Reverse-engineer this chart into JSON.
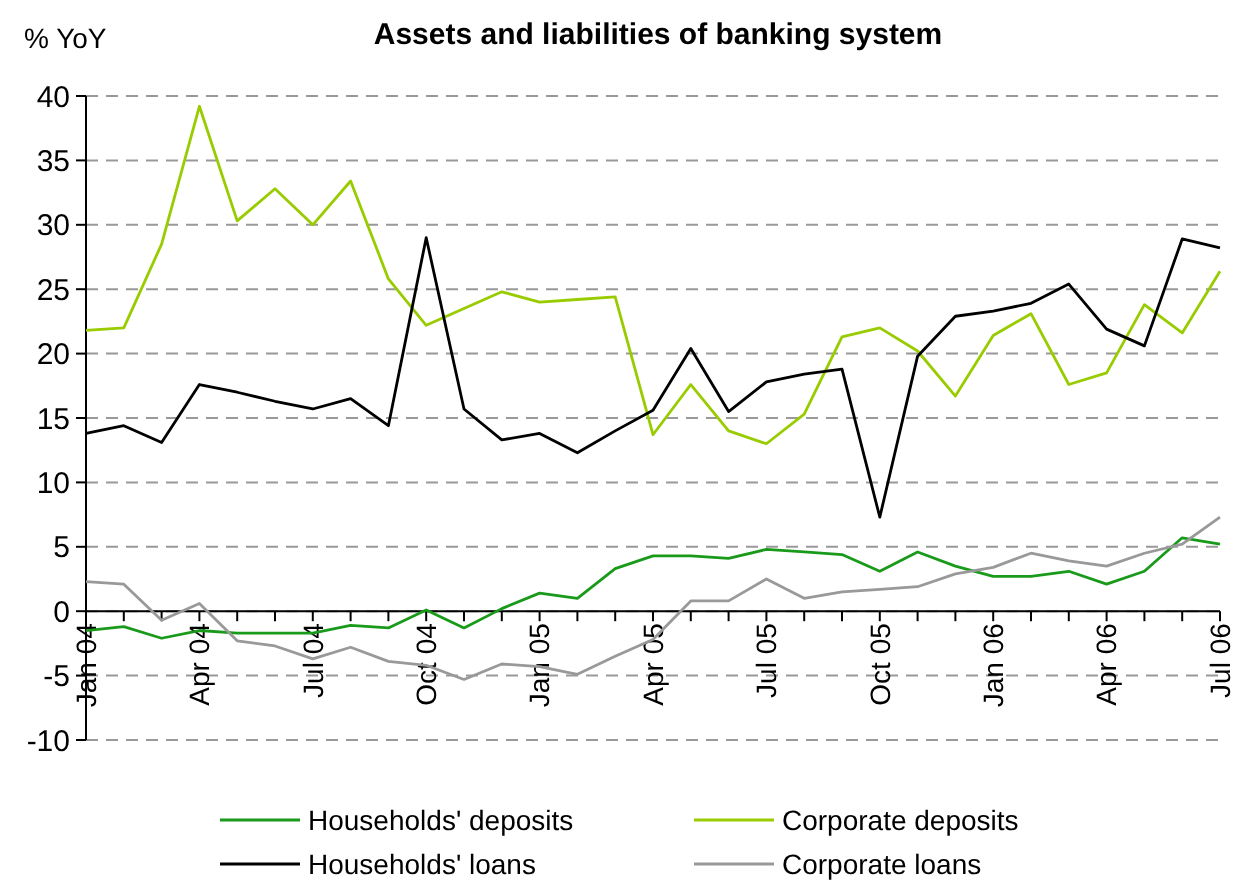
{
  "chart_data": {
    "type": "line",
    "title": "Assets and liabilities of banking system",
    "ylabel": "% YoY",
    "categories": [
      "Jan 04",
      null,
      null,
      "Apr 04",
      null,
      null,
      "Jul 04",
      null,
      null,
      "Oct 04",
      null,
      null,
      "Jan 05",
      null,
      null,
      "Apr 05",
      null,
      null,
      "Jul 05",
      null,
      null,
      "Oct 05",
      null,
      null,
      "Jan 06",
      null,
      null,
      "Apr 06",
      null,
      null,
      "Jul 06"
    ],
    "series": [
      {
        "name": "Households' deposits",
        "color": "#1a9a1a",
        "values": [
          -1.5,
          -1.2,
          -2.1,
          -1.5,
          -1.7,
          -1.7,
          -1.7,
          -1.1,
          -1.3,
          0.1,
          -1.3,
          0.2,
          1.4,
          1,
          3.3,
          4.3,
          4.3,
          4.1,
          4.8,
          4.6,
          4.4,
          3.1,
          4.6,
          3.5,
          2.7,
          2.7,
          3.1,
          2.1,
          3.1,
          5.7,
          5.2
        ]
      },
      {
        "name": "Corporate deposits",
        "color": "#99cc00",
        "values": [
          21.8,
          22,
          28.5,
          39.2,
          30.3,
          32.8,
          30,
          33.4,
          25.8,
          22.2,
          23.5,
          24.8,
          24,
          24.2,
          24.4,
          13.7,
          17.6,
          14,
          13,
          15.3,
          21.3,
          22,
          20.2,
          16.7,
          21.4,
          23.1,
          17.6,
          18.5,
          23.8,
          21.6,
          26.4
        ]
      },
      {
        "name": "Households' loans",
        "color": "#000000",
        "values": [
          13.8,
          14.4,
          13.1,
          17.6,
          17,
          16.3,
          15.7,
          16.5,
          14.4,
          29,
          15.7,
          13.3,
          13.8,
          12.3,
          14,
          15.6,
          20.4,
          15.5,
          17.8,
          18.4,
          18.8,
          7.3,
          19.8,
          22.9,
          23.3,
          23.9,
          25.4,
          21.9,
          20.6,
          28.9,
          28.2
        ]
      },
      {
        "name": "Corporate loans",
        "color": "#999999",
        "values": [
          2.3,
          2.1,
          -0.7,
          0.6,
          -2.3,
          -2.7,
          -3.7,
          -2.8,
          -3.9,
          -4.2,
          -5.3,
          -4.1,
          -4.3,
          -4.9,
          -3.5,
          -2.2,
          0.8,
          0.8,
          2.5,
          1,
          1.5,
          1.7,
          1.9,
          2.9,
          3.4,
          4.5,
          3.9,
          3.5,
          4.5,
          5.2,
          7.3
        ]
      }
    ],
    "ylim": [
      -10,
      40
    ],
    "yticks": [
      -10,
      -5,
      0,
      5,
      10,
      15,
      20,
      25,
      30,
      35,
      40
    ],
    "grid": "y",
    "legend": "bottom",
    "line_style": "solid",
    "marker": "none"
  }
}
